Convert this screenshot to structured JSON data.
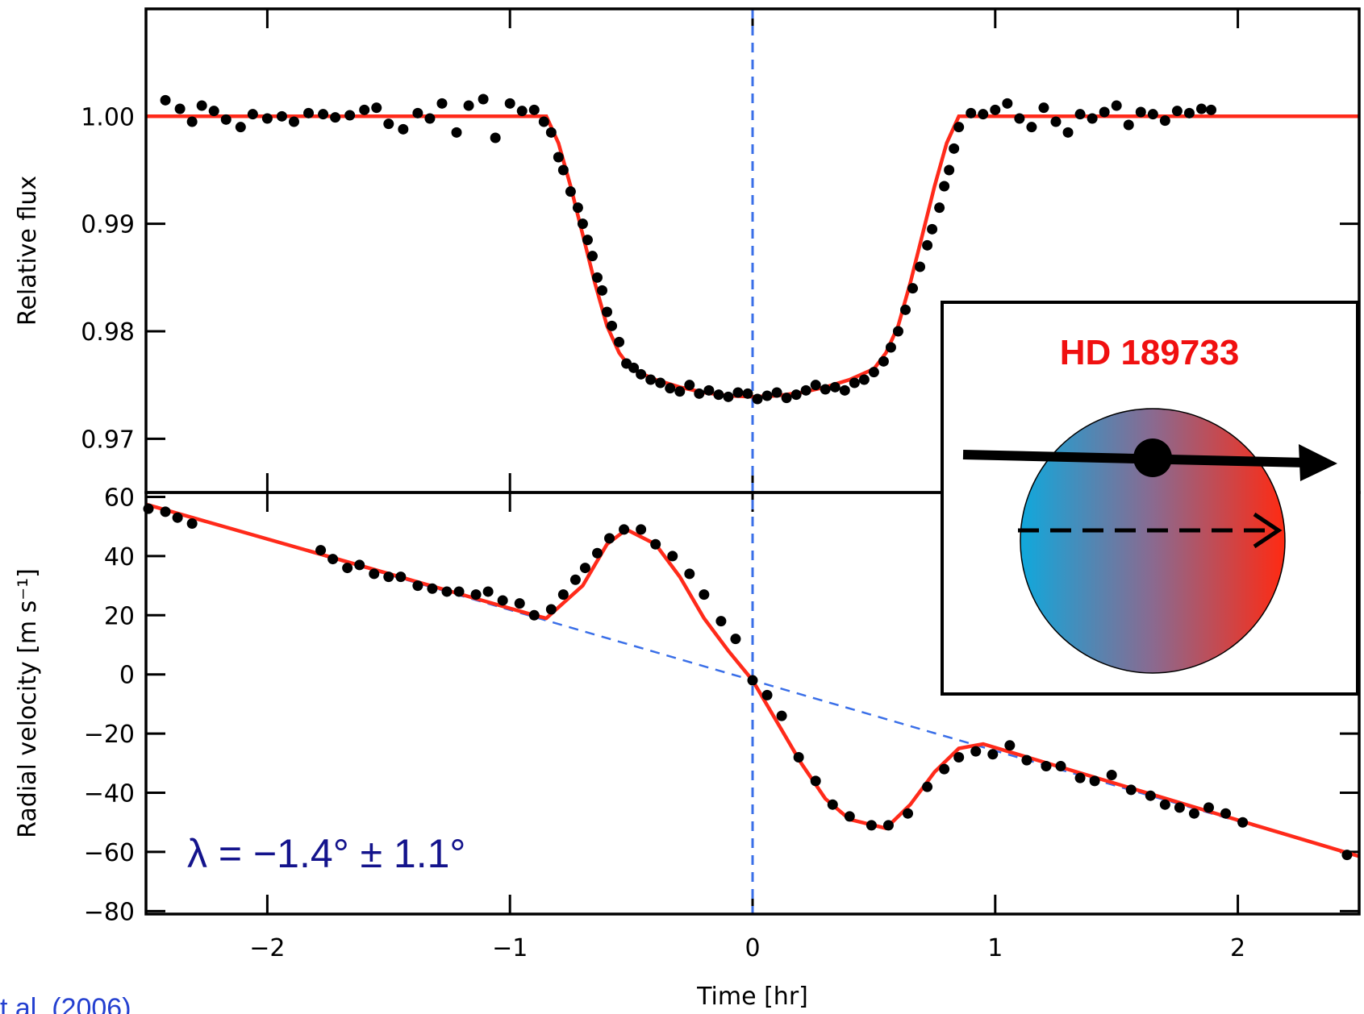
{
  "chart_data": [
    {
      "type": "scatter",
      "ylabel": "Relative flux",
      "xlim": [
        -2.5,
        2.5
      ],
      "ylim": [
        0.965,
        1.01
      ],
      "yticks": [
        0.97,
        0.98,
        0.99,
        {
          "value": 1,
          "label": "1.00"
        }
      ],
      "vline": 0,
      "vline_color": "#3a6fe8",
      "series": [
        {
          "mode": "markers",
          "color": "#000000",
          "x": [
            -2.42,
            -2.36,
            -2.31,
            -2.27,
            -2.22,
            -2.17,
            -2.11,
            -2.06,
            -2.0,
            -1.94,
            -1.89,
            -1.83,
            -1.77,
            -1.72,
            -1.66,
            -1.6,
            -1.55,
            -1.5,
            -1.44,
            -1.38,
            -1.33,
            -1.28,
            -1.22,
            -1.17,
            -1.11,
            -1.06,
            -1.0,
            -0.95,
            -0.9,
            -0.86,
            -0.83,
            -0.8,
            -0.78,
            -0.75,
            -0.72,
            -0.7,
            -0.68,
            -0.66,
            -0.64,
            -0.62,
            -0.6,
            -0.58,
            -0.55,
            -0.52,
            -0.49,
            -0.46,
            -0.42,
            -0.38,
            -0.34,
            -0.3,
            -0.26,
            -0.22,
            -0.18,
            -0.14,
            -0.1,
            -0.06,
            -0.02,
            0.02,
            0.06,
            0.1,
            0.14,
            0.18,
            0.22,
            0.26,
            0.3,
            0.34,
            0.38,
            0.42,
            0.46,
            0.5,
            0.54,
            0.57,
            0.6,
            0.63,
            0.66,
            0.69,
            0.72,
            0.74,
            0.77,
            0.79,
            0.81,
            0.83,
            0.85,
            0.9,
            0.95,
            1.0,
            1.05,
            1.1,
            1.15,
            1.2,
            1.25,
            1.3,
            1.35,
            1.4,
            1.45,
            1.5,
            1.55,
            1.6,
            1.65,
            1.7,
            1.75,
            1.8,
            1.85,
            1.89
          ],
          "values": [
            1.0015,
            1.0007,
            0.9995,
            1.001,
            1.0005,
            0.9997,
            0.999,
            1.0002,
            0.9998,
            1.0,
            0.9995,
            1.0003,
            1.0002,
            0.9999,
            1.0001,
            1.0006,
            1.0008,
            0.9993,
            0.9988,
            1.0003,
            0.9998,
            1.0012,
            0.9985,
            1.001,
            1.0016,
            0.998,
            1.0012,
            1.0005,
            1.0006,
            0.9995,
            0.9985,
            0.9962,
            0.995,
            0.993,
            0.9915,
            0.99,
            0.9885,
            0.987,
            0.985,
            0.9838,
            0.9818,
            0.9805,
            0.979,
            0.977,
            0.9766,
            0.976,
            0.9755,
            0.9752,
            0.9747,
            0.9744,
            0.975,
            0.9742,
            0.9745,
            0.9741,
            0.9739,
            0.9743,
            0.9742,
            0.9737,
            0.974,
            0.9743,
            0.9738,
            0.9741,
            0.9745,
            0.975,
            0.9746,
            0.9748,
            0.9745,
            0.9752,
            0.9755,
            0.9762,
            0.9772,
            0.9785,
            0.98,
            0.982,
            0.984,
            0.986,
            0.988,
            0.9895,
            0.9915,
            0.9935,
            0.995,
            0.997,
            0.999,
            1.0003,
            1.0002,
            1.0006,
            1.0012,
            0.9998,
            0.999,
            1.0008,
            0.9995,
            0.9985,
            1.0002,
            0.9998,
            1.0004,
            1.001,
            0.9992,
            1.0004,
            1.0002,
            0.9996,
            1.0005,
            1.0003,
            1.0007,
            1.0006
          ]
        },
        {
          "mode": "line",
          "color": "#ff2a1a",
          "x": [
            -2.5,
            -0.85,
            -0.8,
            -0.75,
            -0.7,
            -0.65,
            -0.6,
            -0.55,
            -0.5,
            -0.4,
            -0.3,
            -0.2,
            -0.1,
            0,
            0.1,
            0.2,
            0.3,
            0.4,
            0.5,
            0.55,
            0.6,
            0.65,
            0.7,
            0.75,
            0.8,
            0.85,
            2.5
          ],
          "values": [
            1.0,
            1.0,
            0.9975,
            0.9935,
            0.989,
            0.9845,
            0.9805,
            0.978,
            0.9765,
            0.9755,
            0.9748,
            0.9743,
            0.974,
            0.9739,
            0.974,
            0.9743,
            0.9748,
            0.9755,
            0.9765,
            0.978,
            0.9805,
            0.9845,
            0.989,
            0.9935,
            0.9975,
            1.0,
            1.0
          ]
        }
      ]
    },
    {
      "type": "scatter",
      "ylabel": "Radial velocity [m s⁻¹]",
      "xlabel": "Time [hr]",
      "annotation": "λ = −1.4° ± 1.1°",
      "xlim": [
        -2.5,
        2.5
      ],
      "ylim": [
        -81,
        61.5
      ],
      "xticks": [
        {
          "value": -2,
          "label": "−2"
        },
        {
          "value": -1,
          "label": "−1"
        },
        0,
        1,
        2
      ],
      "yticks": [
        60,
        40,
        20,
        0,
        {
          "value": -20,
          "label": "−20"
        },
        {
          "value": -40,
          "label": "−40"
        },
        {
          "value": -60,
          "label": "−60"
        },
        {
          "value": -80,
          "label": "−80"
        }
      ],
      "series": [
        {
          "mode": "dashed",
          "color": "#3a6fe8",
          "x": [
            -2.5,
            2.5
          ],
          "values": [
            57.5,
            -61.5
          ]
        },
        {
          "mode": "line",
          "color": "#ff2a1a",
          "x": [
            -2.5,
            -0.9,
            -0.85,
            -0.7,
            -0.6,
            -0.52,
            -0.4,
            -0.3,
            -0.2,
            -0.1,
            0,
            0.1,
            0.2,
            0.3,
            0.4,
            0.55,
            0.65,
            0.75,
            0.85,
            0.95,
            2.5
          ],
          "values": [
            57.5,
            20,
            19,
            30,
            44,
            49,
            44,
            33,
            19,
            8,
            -2,
            -16,
            -30,
            -42,
            -49,
            -52,
            -44,
            -33,
            -25,
            -23.5,
            -61.5
          ]
        },
        {
          "mode": "markers",
          "color": "#000000",
          "x": [
            -2.49,
            -2.42,
            -2.37,
            -2.31,
            -1.78,
            -1.73,
            -1.67,
            -1.62,
            -1.56,
            -1.5,
            -1.45,
            -1.38,
            -1.32,
            -1.26,
            -1.21,
            -1.14,
            -1.09,
            -1.03,
            -0.96,
            -0.9,
            -0.83,
            -0.78,
            -0.73,
            -0.69,
            -0.64,
            -0.59,
            -0.53,
            -0.46,
            -0.4,
            -0.33,
            -0.26,
            -0.2,
            -0.13,
            -0.07,
            0,
            0.06,
            0.12,
            0.19,
            0.26,
            0.33,
            0.4,
            0.49,
            0.56,
            0.64,
            0.72,
            0.79,
            0.85,
            0.92,
            0.99,
            1.06,
            1.13,
            1.21,
            1.27,
            1.35,
            1.41,
            1.48,
            1.56,
            1.64,
            1.7,
            1.76,
            1.82,
            1.88,
            1.95,
            2.02,
            2.45
          ],
          "values": [
            56,
            55,
            53,
            51,
            42,
            39,
            36,
            37,
            34,
            33,
            33,
            30,
            29,
            28,
            28,
            27,
            28,
            25,
            24,
            20,
            22,
            27,
            32,
            36,
            41,
            46,
            49,
            49,
            44,
            40,
            34,
            27,
            18,
            12,
            -2,
            -7,
            -14,
            -28,
            -36,
            -44,
            -48,
            -51,
            -51,
            -47,
            -38,
            -32,
            -28,
            -26,
            -27,
            -24,
            -29,
            -31,
            -31,
            -35,
            -36,
            -34,
            -39,
            -41,
            -44,
            -45,
            -47,
            -45,
            -47,
            -50,
            -61
          ]
        }
      ]
    }
  ],
  "inset": {
    "title": "HD 189733"
  },
  "citation": "t al. (2006)"
}
